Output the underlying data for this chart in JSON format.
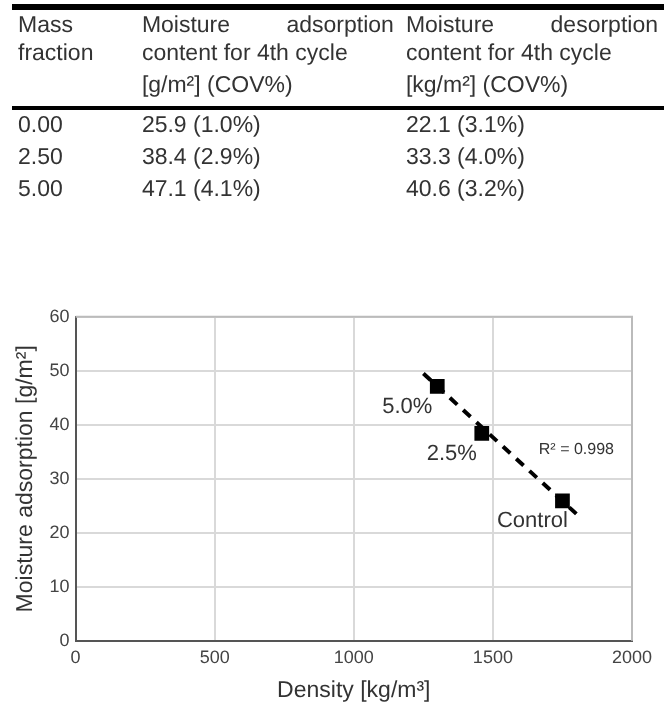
{
  "chart_data": [
    {
      "type": "other",
      "annotations": [
        "Mass fraction",
        "Moisture adsorption content for 4th cycle",
        "Moisture desorption content for 4th cycle",
        "[g/m²] (COV%)",
        "[kg/m²] (COV%)",
        "0.00",
        "25.9 (1.0%)",
        "22.1 (3.1%)",
        "2.50",
        "38.4 (2.9%)",
        "33.3 (4.0%)",
        "5.00",
        "47.1 (4.1%)",
        "40.6 (3.2%)"
      ]
    },
    {
      "type": "scatter",
      "xlabel": "Density [kg/m³]",
      "ylabel": "Moisture adsorption [g/m²]",
      "xlim": [
        0,
        2000
      ],
      "xticks": [
        0,
        500,
        1000,
        1500,
        2000
      ],
      "ylim": [
        0,
        60
      ],
      "yticks": [
        0,
        10,
        20,
        30,
        40,
        50,
        60
      ],
      "grid": true,
      "legend": false,
      "series": [
        {
          "type": "scatter",
          "color": "#000000",
          "marker": "square",
          "x": [
            1300,
            1460,
            1750
          ],
          "values": [
            47.1,
            38.4,
            25.9
          ]
        },
        {
          "type": "line",
          "color": "#000000",
          "line_style": "dashed",
          "marker": "none",
          "x": [
            1250,
            1800
          ],
          "values": [
            49.5,
            23.5
          ]
        }
      ],
      "annotations": [
        {
          "text": "5.0%",
          "x": 1300,
          "y": 47.1
        },
        {
          "text": "2.5%",
          "x": 1460,
          "y": 38.4
        },
        {
          "text": "Control",
          "x": 1750,
          "y": 25.9
        },
        "R² = 0.998"
      ]
    }
  ]
}
